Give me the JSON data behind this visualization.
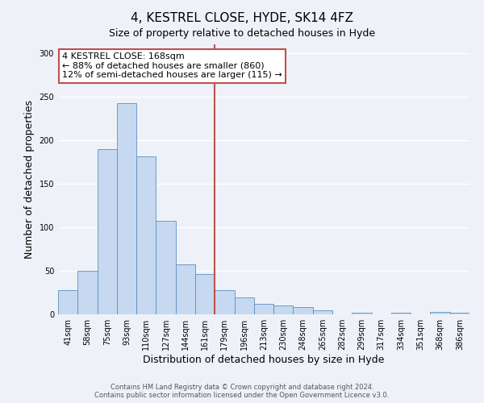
{
  "title": "4, KESTREL CLOSE, HYDE, SK14 4FZ",
  "subtitle": "Size of property relative to detached houses in Hyde",
  "xlabel": "Distribution of detached houses by size in Hyde",
  "ylabel": "Number of detached properties",
  "bar_labels": [
    "41sqm",
    "58sqm",
    "75sqm",
    "93sqm",
    "110sqm",
    "127sqm",
    "144sqm",
    "161sqm",
    "179sqm",
    "196sqm",
    "213sqm",
    "230sqm",
    "248sqm",
    "265sqm",
    "282sqm",
    "299sqm",
    "317sqm",
    "334sqm",
    "351sqm",
    "368sqm",
    "386sqm"
  ],
  "bar_values": [
    28,
    50,
    190,
    242,
    181,
    107,
    57,
    46,
    28,
    19,
    12,
    10,
    8,
    5,
    0,
    2,
    0,
    2,
    0,
    3,
    2
  ],
  "bar_color": "#c6d9f0",
  "bar_edge_color": "#5a8fc2",
  "highlight_bar_index": 7,
  "vline_color": "#c0504d",
  "annotation_text": "4 KESTREL CLOSE: 168sqm\n← 88% of detached houses are smaller (860)\n12% of semi-detached houses are larger (115) →",
  "annotation_box_color": "#ffffff",
  "annotation_box_edge_color": "#c0504d",
  "ylim": [
    0,
    310
  ],
  "yticks": [
    0,
    50,
    100,
    150,
    200,
    250,
    300
  ],
  "footer_text": "Contains HM Land Registry data © Crown copyright and database right 2024.\nContains public sector information licensed under the Open Government Licence v3.0.",
  "background_color": "#eef2f8",
  "grid_color": "#ffffff",
  "title_fontsize": 11,
  "subtitle_fontsize": 9,
  "axis_label_fontsize": 9,
  "tick_fontsize": 7,
  "footer_fontsize": 6
}
